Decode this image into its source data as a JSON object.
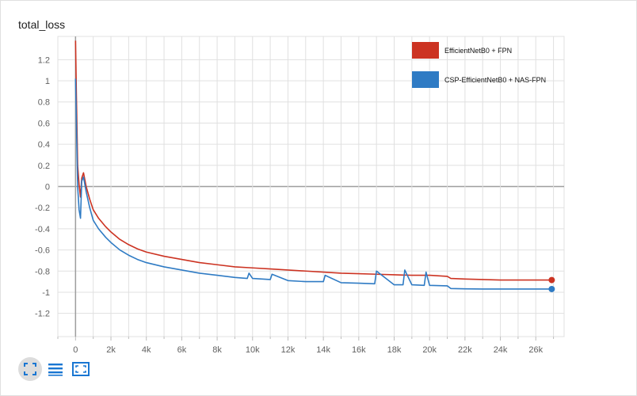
{
  "card": {
    "title": "total_loss"
  },
  "toolbar": {
    "buttons": [
      {
        "icon": "fit-to-data-icon",
        "active": true
      },
      {
        "icon": "toggle-log-list-icon",
        "active": false
      },
      {
        "icon": "crop-selection-icon",
        "active": false
      }
    ],
    "icon_color": "#1976d2"
  },
  "chart_data": {
    "type": "line",
    "title": "total_loss",
    "xlabel": "",
    "ylabel": "",
    "xlim": [
      -1000,
      27600
    ],
    "ylim": [
      -1.42,
      1.42
    ],
    "x_ticks": [
      "0",
      "2k",
      "4k",
      "6k",
      "8k",
      "10k",
      "12k",
      "14k",
      "16k",
      "18k",
      "20k",
      "22k",
      "24k",
      "26k"
    ],
    "x_tick_values": [
      0,
      2000,
      4000,
      6000,
      8000,
      10000,
      12000,
      14000,
      16000,
      18000,
      20000,
      22000,
      24000,
      26000
    ],
    "y_ticks": [
      "1.2",
      "1",
      "0.8",
      "0.6",
      "0.4",
      "0.2",
      "0",
      "-0.2",
      "-0.4",
      "-0.6",
      "-0.8",
      "-1",
      "-1.2"
    ],
    "y_tick_values": [
      1.2,
      1.0,
      0.8,
      0.6,
      0.4,
      0.2,
      0,
      -0.2,
      -0.4,
      -0.6,
      -0.8,
      -1.0,
      -1.2
    ],
    "grid": true,
    "legend_position": "top-right",
    "series": [
      {
        "name": "EfficientNetB0 + FPN",
        "color": "#cc3322",
        "x": [
          0,
          50,
          120,
          200,
          280,
          350,
          450,
          600,
          800,
          1000,
          1300,
          1700,
          2000,
          2500,
          3000,
          3500,
          4000,
          5000,
          6000,
          7000,
          8000,
          9000,
          10000,
          11000,
          12000,
          13000,
          14000,
          15000,
          16000,
          17000,
          18000,
          19000,
          20000,
          21000,
          21200,
          22000,
          23000,
          24000,
          25000,
          26000,
          26900
        ],
        "y": [
          1.38,
          0.85,
          0.2,
          0.02,
          -0.1,
          0.08,
          0.13,
          0.0,
          -0.12,
          -0.22,
          -0.3,
          -0.38,
          -0.43,
          -0.5,
          -0.55,
          -0.59,
          -0.62,
          -0.66,
          -0.69,
          -0.72,
          -0.74,
          -0.76,
          -0.77,
          -0.78,
          -0.79,
          -0.8,
          -0.81,
          -0.82,
          -0.825,
          -0.83,
          -0.835,
          -0.84,
          -0.84,
          -0.85,
          -0.87,
          -0.875,
          -0.88,
          -0.885,
          -0.885,
          -0.885,
          -0.885
        ]
      },
      {
        "name": "CSP-EfficientNetB0 + NAS-FPN",
        "color": "#2f7bc4",
        "x": [
          0,
          50,
          120,
          200,
          280,
          350,
          450,
          600,
          800,
          1000,
          1300,
          1700,
          2000,
          2500,
          3000,
          3500,
          4000,
          5000,
          6000,
          7000,
          8000,
          9000,
          9700,
          9800,
          10000,
          11000,
          11100,
          12000,
          13000,
          14000,
          14100,
          15000,
          16000,
          16900,
          17000,
          18000,
          18500,
          18600,
          19000,
          19700,
          19800,
          20000,
          21000,
          21200,
          22000,
          23000,
          24000,
          25000,
          26000,
          26900
        ],
        "y": [
          1.02,
          0.6,
          0.0,
          -0.22,
          -0.3,
          0.05,
          0.09,
          -0.05,
          -0.2,
          -0.32,
          -0.4,
          -0.48,
          -0.53,
          -0.6,
          -0.65,
          -0.69,
          -0.72,
          -0.76,
          -0.79,
          -0.82,
          -0.84,
          -0.86,
          -0.87,
          -0.82,
          -0.87,
          -0.88,
          -0.83,
          -0.89,
          -0.9,
          -0.9,
          -0.84,
          -0.91,
          -0.915,
          -0.92,
          -0.8,
          -0.93,
          -0.93,
          -0.79,
          -0.93,
          -0.935,
          -0.81,
          -0.935,
          -0.94,
          -0.965,
          -0.968,
          -0.97,
          -0.97,
          -0.97,
          -0.97,
          -0.97
        ]
      }
    ]
  }
}
